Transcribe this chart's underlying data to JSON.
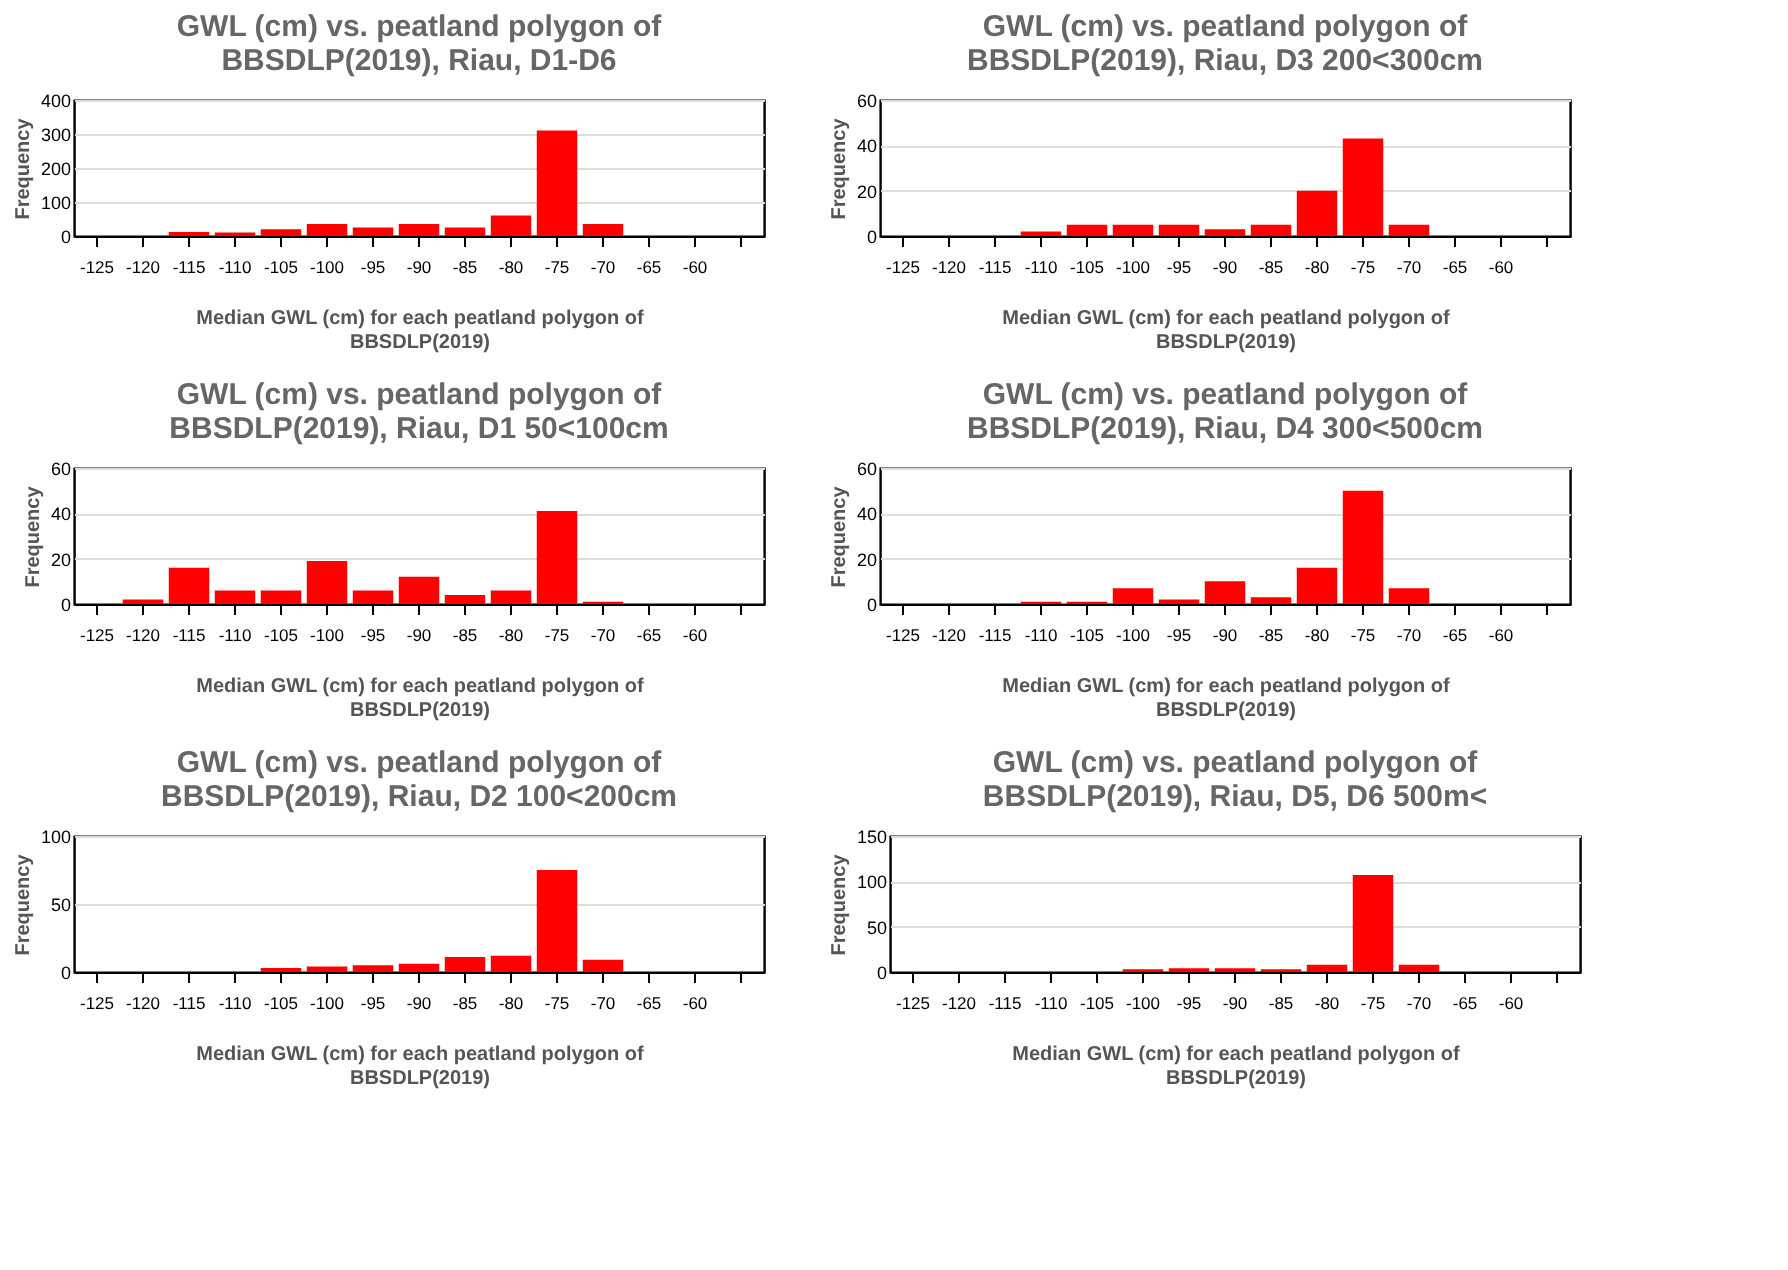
{
  "chart_data": [
    {
      "type": "bar",
      "title": "GWL (cm) vs. peatland polygon of\nBBSDLP(2019), Riau, D1-D6",
      "xlabel": "Median GWL (cm) for each peatland polygon of\nBBSDLP(2019)",
      "ylabel": "Frequency",
      "categories": [
        "-125",
        "-120",
        "-115",
        "-110",
        "-105",
        "-100",
        "-95",
        "-90",
        "-85",
        "-80",
        "-75",
        "-70",
        "-65",
        "-60",
        null
      ],
      "values": [
        0,
        0,
        12,
        10,
        20,
        35,
        25,
        35,
        25,
        60,
        310,
        35,
        0,
        0,
        0
      ],
      "color": "#ff0000",
      "ylim": [
        0,
        400
      ],
      "yticks": [
        0,
        100,
        200,
        300,
        400
      ],
      "grid": "y"
    },
    {
      "type": "bar",
      "title": "GWL (cm) vs. peatland polygon of\nBBSDLP(2019), Riau, D3 200<300cm",
      "xlabel": "Median GWL (cm) for each peatland polygon of\nBBSDLP(2019)",
      "ylabel": "Frequency",
      "categories": [
        "-125",
        "-120",
        "-115",
        "-110",
        "-105",
        "-100",
        "-95",
        "-90",
        "-85",
        "-80",
        "-75",
        "-70",
        "-65",
        "-60",
        null
      ],
      "values": [
        0,
        0,
        0,
        2,
        5,
        5,
        5,
        3,
        5,
        20,
        43,
        5,
        0,
        0,
        0
      ],
      "color": "#ff0000",
      "ylim": [
        0,
        60
      ],
      "yticks": [
        0,
        20,
        40,
        60
      ],
      "grid": "y"
    },
    {
      "type": "bar",
      "title": "GWL (cm) vs. peatland polygon of\nBBSDLP(2019), Riau, D1 50<100cm",
      "xlabel": "Median GWL (cm) for each peatland polygon of\nBBSDLP(2019)",
      "ylabel": "Frequency",
      "categories": [
        "-125",
        "-120",
        "-115",
        "-110",
        "-105",
        "-100",
        "-95",
        "-90",
        "-85",
        "-80",
        "-75",
        "-70",
        "-65",
        "-60",
        null
      ],
      "values": [
        0,
        2,
        16,
        6,
        6,
        19,
        6,
        12,
        4,
        6,
        41,
        1,
        0,
        0,
        0
      ],
      "color": "#ff0000",
      "ylim": [
        0,
        60
      ],
      "yticks": [
        0,
        20,
        40,
        60
      ],
      "grid": "y"
    },
    {
      "type": "bar",
      "title": "GWL (cm) vs. peatland polygon of\nBBSDLP(2019), Riau, D4 300<500cm",
      "xlabel": "Median GWL (cm) for each peatland polygon of\nBBSDLP(2019)",
      "ylabel": "Frequency",
      "categories": [
        "-125",
        "-120",
        "-115",
        "-110",
        "-105",
        "-100",
        "-95",
        "-90",
        "-85",
        "-80",
        "-75",
        "-70",
        "-65",
        "-60",
        null
      ],
      "values": [
        0,
        0,
        0,
        1,
        1,
        7,
        2,
        10,
        3,
        16,
        50,
        7,
        0,
        0,
        0
      ],
      "color": "#ff0000",
      "ylim": [
        0,
        60
      ],
      "yticks": [
        0,
        20,
        40,
        60
      ],
      "grid": "y"
    },
    {
      "type": "bar",
      "title": "GWL (cm) vs. peatland polygon of\nBBSDLP(2019), Riau, D2 100<200cm",
      "xlabel": "Median GWL (cm) for each peatland polygon of\nBBSDLP(2019)",
      "ylabel": "Frequency",
      "categories": [
        "-125",
        "-120",
        "-115",
        "-110",
        "-105",
        "-100",
        "-95",
        "-90",
        "-85",
        "-80",
        "-75",
        "-70",
        "-65",
        "-60",
        null
      ],
      "values": [
        0,
        0,
        0,
        0,
        3,
        4,
        5,
        6,
        11,
        12,
        75,
        9,
        0,
        0,
        0
      ],
      "color": "#ff0000",
      "ylim": [
        0,
        100
      ],
      "yticks": [
        0,
        50,
        100
      ],
      "grid": "y"
    },
    {
      "type": "bar",
      "title": "GWL (cm) vs. peatland polygon of\nBBSDLP(2019), Riau, D5, D6 500m<",
      "xlabel": "Median GWL (cm) for each peatland polygon of\nBBSDLP(2019)",
      "ylabel": "Frequency",
      "categories": [
        "-125",
        "-120",
        "-115",
        "-110",
        "-105",
        "-100",
        "-95",
        "-90",
        "-85",
        "-80",
        "-75",
        "-70",
        "-65",
        "-60",
        null
      ],
      "values": [
        0,
        0,
        0,
        0,
        0,
        3,
        4,
        4,
        3,
        8,
        107,
        8,
        0,
        0,
        0
      ],
      "color": "#ff0000",
      "ylim": [
        0,
        150
      ],
      "yticks": [
        0,
        50,
        100,
        150
      ],
      "grid": "y"
    }
  ]
}
